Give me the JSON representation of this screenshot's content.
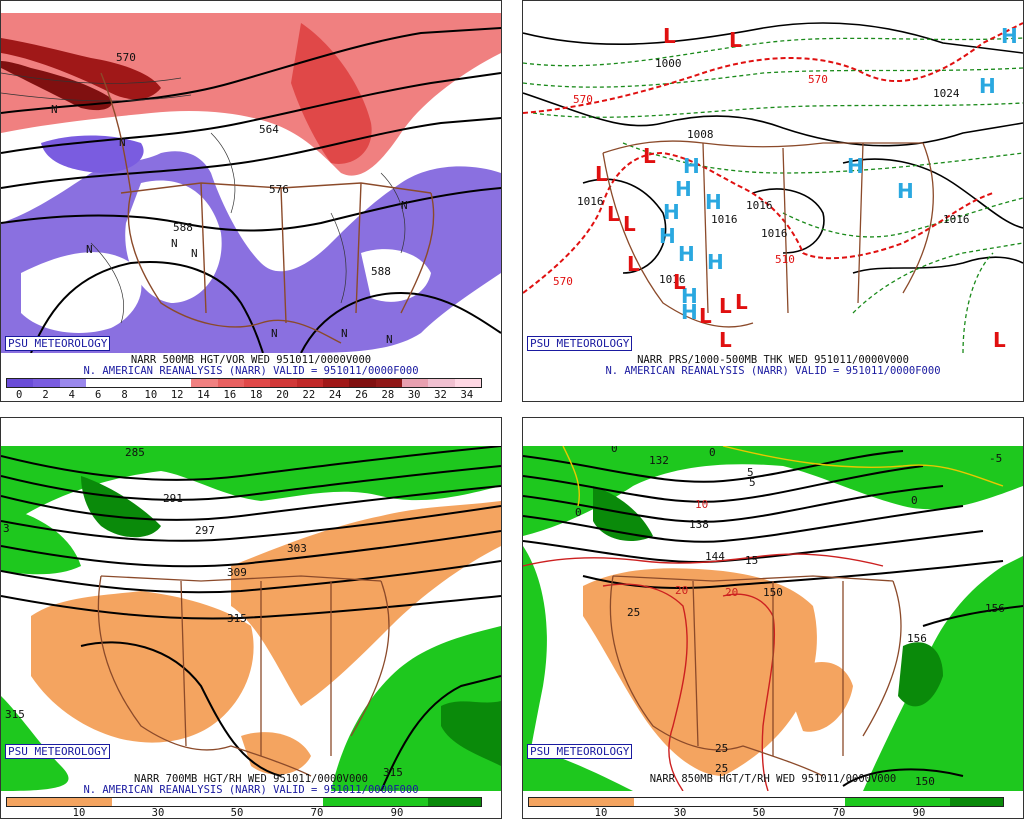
{
  "panels": {
    "p500": {
      "psu": "PSU METEOROLOGY",
      "title1": "NARR 500MB HGT/VOR WED 951011/0000V000",
      "title2": "N. AMERICAN REANALYSIS (NARR) VALID = 951011/0000F000",
      "contour_labels": [
        "570",
        "564",
        "576",
        "588",
        "588"
      ],
      "center_marks": [
        "N",
        "N",
        "N",
        "N",
        "N",
        "N",
        "N",
        "N",
        "N"
      ],
      "colorbar": {
        "colors": [
          "#6a4cd8",
          "#7a5ce0",
          "#9a88ec",
          "#ffffff",
          "#ffffff",
          "#ffffff",
          "#ffffff",
          "#f08080",
          "#e86060",
          "#e04848",
          "#d03838",
          "#c02828",
          "#a01818",
          "#801010",
          "#901818",
          "#e8a0b0",
          "#f0c0d0",
          "#ffd8e4"
        ],
        "ticks": [
          "0",
          "2",
          "4",
          "6",
          "8",
          "10",
          "12",
          "14",
          "16",
          "18",
          "20",
          "22",
          "24",
          "26",
          "28",
          "30",
          "32",
          "34"
        ]
      }
    },
    "pprs": {
      "psu": "PSU METEOROLOGY",
      "title1": "NARR PRS/1000-500MB THK WED 951011/0000V000",
      "title2": "N. AMERICAN REANALYSIS (NARR) VALID = 951011/0000F000",
      "contour_labels": [
        "1000",
        "1008",
        "1016",
        "1016",
        "1016",
        "1016",
        "1024",
        "1016",
        "1016",
        "570",
        "570",
        "570",
        "510"
      ],
      "highs": [
        "H",
        "H",
        "H",
        "H",
        "H",
        "H",
        "H",
        "H",
        "H",
        "H",
        "H",
        "H",
        "H",
        "H",
        "H"
      ],
      "lows": [
        "L",
        "L",
        "L",
        "L",
        "L",
        "L",
        "L",
        "L",
        "L",
        "L",
        "L",
        "L",
        "L"
      ],
      "colors": {
        "high": "#2aa8e0",
        "low": "#e01010"
      }
    },
    "p700": {
      "psu": "PSU METEOROLOGY",
      "title1": "NARR 700MB HGT/RH WED 951011/0000V000",
      "title2": "N. AMERICAN REANALYSIS (NARR) VALID = 951011/0000F000",
      "contour_labels": [
        "285",
        "291",
        "297",
        "303",
        "309",
        "315",
        "315",
        "315",
        "3"
      ],
      "colorbar": {
        "colors": [
          "#f4a460",
          "#f4a460",
          "#ffffff",
          "#ffffff",
          "#ffffff",
          "#ffffff",
          "#1ec81e",
          "#1ec81e",
          "#0a8a0a"
        ],
        "ticks": [
          "10",
          "30",
          "50",
          "70",
          "90"
        ]
      }
    },
    "p850": {
      "psu": "PSU METEOROLOGY",
      "title1": "NARR 850MB HGT/T/RH WED 951011/0000V000",
      "contour_labels": [
        "132",
        "138",
        "144",
        "150",
        "156",
        "156",
        "150",
        "-5",
        "5",
        "10",
        "15",
        "20",
        "20",
        "25",
        "25",
        "25",
        "0",
        "0",
        "0",
        "0",
        "5"
      ],
      "colorbar": {
        "colors": [
          "#f4a460",
          "#f4a460",
          "#ffffff",
          "#ffffff",
          "#ffffff",
          "#ffffff",
          "#1ec81e",
          "#1ec81e",
          "#0a8a0a"
        ],
        "ticks": [
          "10",
          "30",
          "50",
          "70",
          "90"
        ]
      }
    }
  }
}
